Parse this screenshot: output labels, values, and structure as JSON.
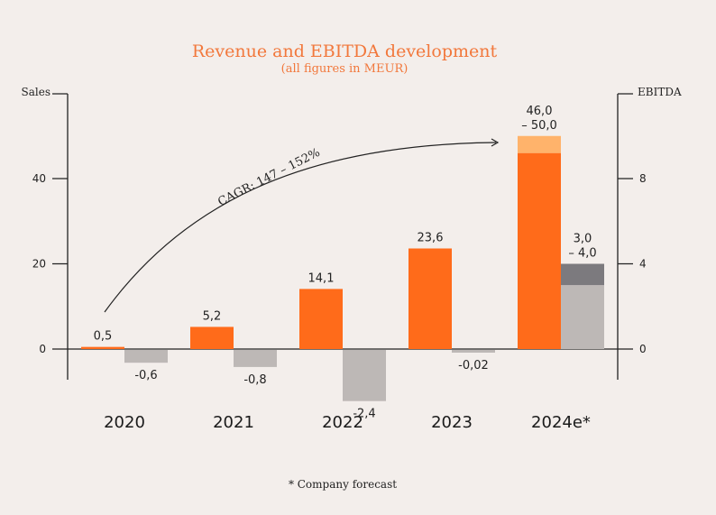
{
  "chart_data": {
    "type": "bar",
    "title": "Revenue and EBITDA development",
    "subtitle": "(all figures in MEUR)",
    "categories": [
      "2020",
      "2021",
      "2022",
      "2023",
      "2024e*"
    ],
    "left_axis": {
      "label": "Sales",
      "ticks": [
        0,
        20,
        40
      ],
      "ylim": [
        0,
        60
      ]
    },
    "right_axis": {
      "label": "EBITDA",
      "ticks": [
        0,
        4,
        8
      ],
      "ylim": [
        0,
        12
      ]
    },
    "series": [
      {
        "name": "Sales",
        "axis": "left",
        "color": "#ff6b1a",
        "range_color": "#ffb36b",
        "values": [
          0.5,
          5.2,
          14.1,
          23.6,
          46.0
        ],
        "upper": [
          null,
          null,
          null,
          null,
          50.0
        ],
        "labels": [
          "0,5",
          "5,2",
          "14,1",
          "23,6",
          "46,0\n– 50,0"
        ]
      },
      {
        "name": "EBITDA",
        "axis": "right",
        "color": "#bdb8b6",
        "range_color": "#7c7a7e",
        "values": [
          -0.6,
          -0.8,
          -2.4,
          -0.02,
          3.0
        ],
        "upper": [
          null,
          null,
          null,
          null,
          4.0
        ],
        "labels": [
          "-0,6",
          "-0,8",
          "-2,4",
          "-0,02",
          "3,0\n– 4,0"
        ]
      }
    ],
    "annotation": "CAGR: 147 – 152%",
    "footnote": "* Company forecast"
  }
}
